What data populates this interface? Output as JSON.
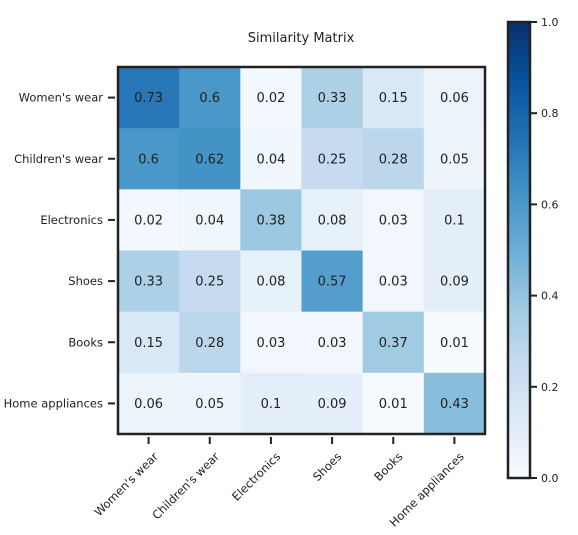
{
  "chart_data": {
    "type": "heatmap",
    "title": "Similarity Matrix",
    "xlabel": "",
    "ylabel": "",
    "row_labels": [
      "Women's wear",
      "Children's wear",
      "Electronics",
      "Shoes",
      "Books",
      "Home appliances"
    ],
    "col_labels": [
      "Women's wear",
      "Children's wear",
      "Electronics",
      "Shoes",
      "Books",
      "Home appliances"
    ],
    "values": [
      [
        0.73,
        0.6,
        0.02,
        0.33,
        0.15,
        0.06
      ],
      [
        0.6,
        0.62,
        0.04,
        0.25,
        0.28,
        0.05
      ],
      [
        0.02,
        0.04,
        0.38,
        0.08,
        0.03,
        0.1
      ],
      [
        0.33,
        0.25,
        0.08,
        0.57,
        0.03,
        0.09
      ],
      [
        0.15,
        0.28,
        0.03,
        0.03,
        0.37,
        0.01
      ],
      [
        0.06,
        0.05,
        0.1,
        0.09,
        0.01,
        0.43
      ]
    ],
    "colorbar": {
      "range": [
        0.0,
        1.0
      ],
      "ticks": [
        0.0,
        0.2,
        0.4,
        0.6,
        0.8,
        1.0
      ],
      "tick_labels": [
        "0.0",
        "0.2",
        "0.4",
        "0.6",
        "0.8",
        "1.0"
      ],
      "colormap": "Blues",
      "colors": [
        "#f7fbff",
        "#deebf7",
        "#c6dbef",
        "#9ecae1",
        "#6baed6",
        "#4292c6",
        "#2171b5",
        "#08519c",
        "#08306b"
      ]
    },
    "grid": false
  }
}
